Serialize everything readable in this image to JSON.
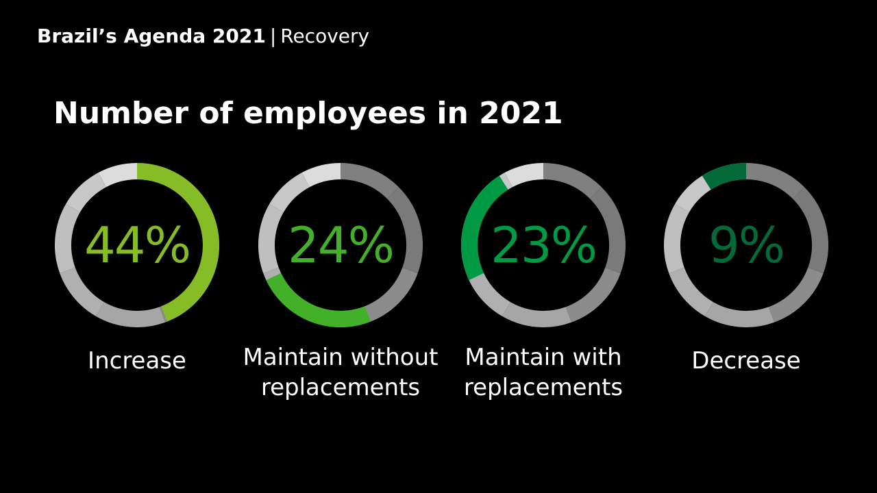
{
  "header": {
    "brand": "Brazil’s Agenda 2021",
    "separator": "|",
    "section": "Recovery"
  },
  "chart_data": {
    "type": "pie",
    "title": "Number of employees in 2021",
    "items": [
      {
        "label_lines": [
          "Increase"
        ],
        "value": 44,
        "display": "44%",
        "color": "#86bc25"
      },
      {
        "label_lines": [
          "Maintain without",
          "replacements"
        ],
        "value": 24,
        "display": "24%",
        "color": "#43b02a"
      },
      {
        "label_lines": [
          "Maintain with",
          "replacements"
        ],
        "value": 23,
        "display": "23%",
        "color": "#009a44"
      },
      {
        "label_lines": [
          "Decrease"
        ],
        "value": 9,
        "display": "9%",
        "color": "#046a38"
      }
    ]
  }
}
